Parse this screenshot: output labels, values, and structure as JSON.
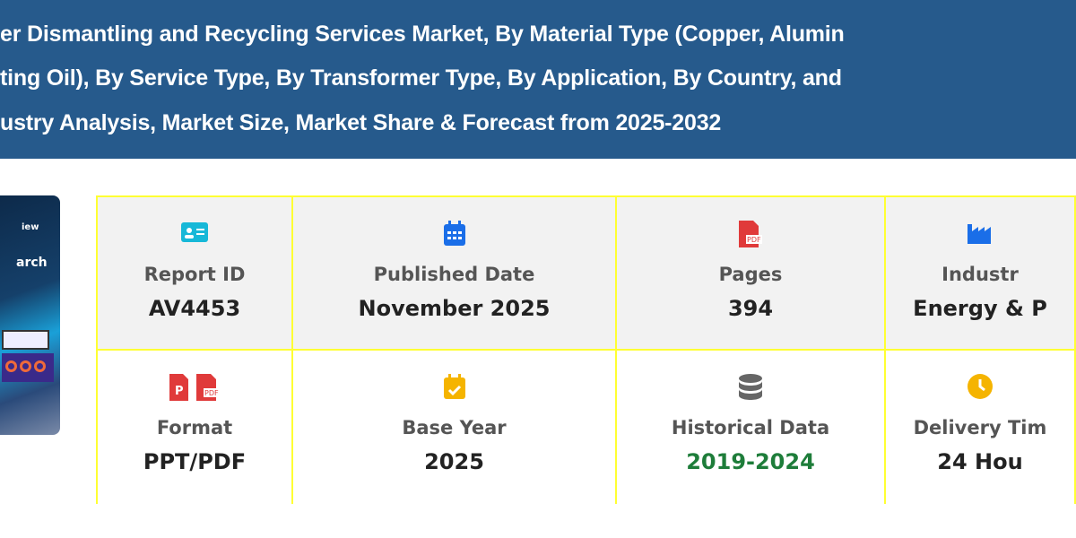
{
  "header": {
    "title_lines": [
      "er Dismantling and Recycling Services Market, By Material Type (Copper, Alumin",
      "ting Oil), By Service Type, By Transformer Type, By Application, By Country, and",
      "ustry Analysis, Market Size, Market Share & Forecast from 2025-2032"
    ]
  },
  "cover": {
    "text1": "iew",
    "text2": "arch"
  },
  "details": [
    {
      "icon": "id-card-icon",
      "label": "Report ID",
      "value": "AV4453"
    },
    {
      "icon": "calendar-icon",
      "label": "Published Date",
      "value": "November 2025"
    },
    {
      "icon": "pdf-file-icon",
      "label": "Pages",
      "value": "394"
    },
    {
      "icon": "industry-icon",
      "label": "Industr",
      "value": "Energy & P"
    },
    {
      "icon": "ppt-pdf-icon",
      "label": "Format",
      "value": "PPT/PDF"
    },
    {
      "icon": "calendar-check-icon",
      "label": "Base Year",
      "value": "2025"
    },
    {
      "icon": "database-icon",
      "label": "Historical Data",
      "value": "2019-2024",
      "value_color": "#1e7d3a"
    },
    {
      "icon": "clock-icon",
      "label": "Delivery Tim",
      "value": "24 Hou"
    }
  ]
}
